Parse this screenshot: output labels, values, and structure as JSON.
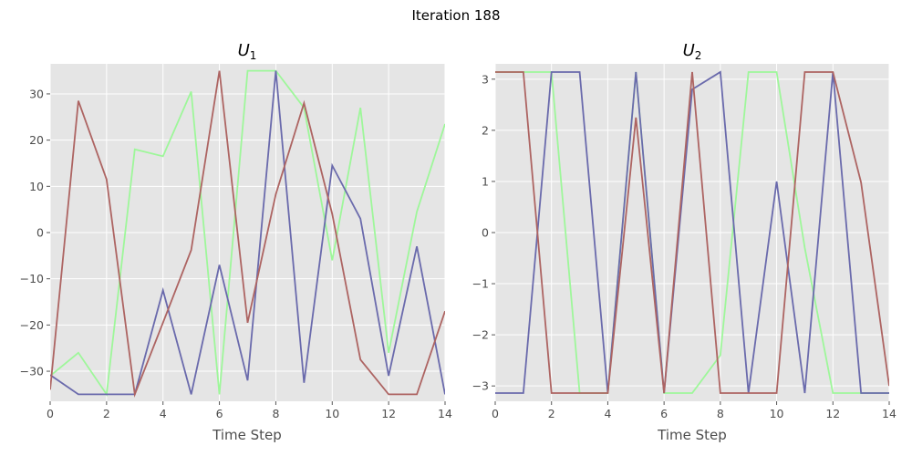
{
  "figure": {
    "suptitle": "Iteration 188"
  },
  "chart_data": [
    {
      "type": "line",
      "title_main": "U",
      "title_sub": "1",
      "xlabel": "Time Step",
      "ylabel": "",
      "xlim": [
        0,
        14
      ],
      "ylim": [
        -36.5,
        36.5
      ],
      "xticks": [
        0,
        2,
        4,
        6,
        8,
        10,
        12,
        14
      ],
      "yticks": [
        30,
        20,
        10,
        0,
        -10,
        -20,
        -30
      ],
      "ytick_labels": [
        "30",
        "20",
        "10",
        "0",
        "−10",
        "−20",
        "−30"
      ],
      "grid": true,
      "x": [
        0,
        1,
        2,
        3,
        4,
        5,
        6,
        7,
        8,
        9,
        10,
        11,
        12,
        13,
        14
      ],
      "series": [
        {
          "color": "#9ef79a",
          "values": [
            -31,
            -26,
            -35,
            18,
            16.5,
            30.5,
            -35,
            35,
            35,
            27,
            -6,
            27,
            -26,
            4.5,
            23.5
          ]
        },
        {
          "color": "#6a6aac",
          "values": [
            -30.8,
            -35,
            -35,
            -35,
            -12.5,
            -35,
            -7,
            -32,
            35,
            -32.5,
            14.5,
            3,
            -31,
            -3,
            -35
          ]
        },
        {
          "color": "#ad6462",
          "values": [
            -34,
            28.5,
            11.5,
            -35,
            -19.5,
            -3.8,
            35,
            -19.5,
            8.3,
            28,
            4,
            -27.5,
            -35,
            -35,
            -17
          ]
        }
      ]
    },
    {
      "type": "line",
      "title_main": "U",
      "title_sub": "2",
      "xlabel": "Time Step",
      "ylabel": "",
      "xlim": [
        0,
        14
      ],
      "ylim": [
        -3.3,
        3.3
      ],
      "xticks": [
        0,
        2,
        4,
        6,
        8,
        10,
        12,
        14
      ],
      "yticks": [
        3,
        2,
        1,
        0,
        -1,
        -2,
        -3
      ],
      "ytick_labels": [
        "3",
        "2",
        "1",
        "0",
        "−1",
        "−2",
        "−3"
      ],
      "grid": true,
      "x": [
        0,
        1,
        2,
        3,
        4,
        5,
        6,
        7,
        8,
        9,
        10,
        11,
        12,
        13,
        14
      ],
      "series": [
        {
          "color": "#9ef79a",
          "values": [
            3.14,
            3.14,
            3.14,
            -3.14,
            -3.14,
            3.14,
            -3.14,
            -3.14,
            -2.4,
            3.14,
            3.14,
            -0.3,
            -3.14,
            -3.14,
            -3.14
          ]
        },
        {
          "color": "#6a6aac",
          "values": [
            -3.14,
            -3.14,
            3.14,
            3.14,
            -3.14,
            3.14,
            -3.14,
            2.8,
            3.14,
            -3.14,
            1.0,
            -3.14,
            3.14,
            -3.14,
            -3.14
          ]
        },
        {
          "color": "#ad6462",
          "values": [
            3.14,
            3.14,
            -3.14,
            -3.14,
            -3.14,
            2.25,
            -3.14,
            3.14,
            -3.14,
            -3.14,
            -3.14,
            3.14,
            3.14,
            0.98,
            -3.0
          ]
        }
      ]
    }
  ]
}
